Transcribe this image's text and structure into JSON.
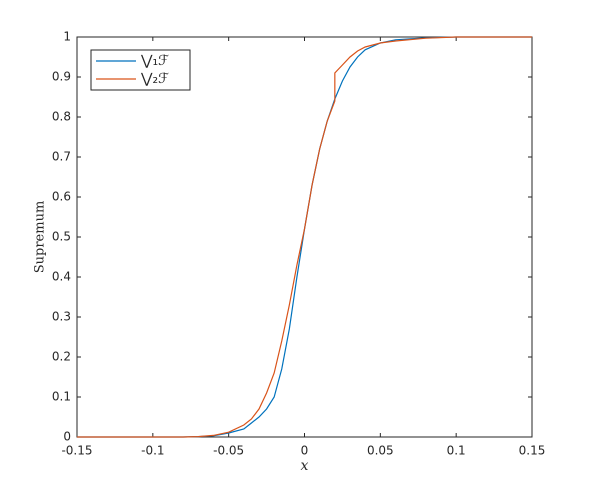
{
  "chart_data": {
    "type": "line",
    "x": [
      -0.15,
      -0.1,
      -0.08,
      -0.07,
      -0.06,
      -0.05,
      -0.04,
      -0.035,
      -0.03,
      -0.025,
      -0.02,
      -0.015,
      -0.01,
      -0.005,
      0,
      0.005,
      0.01,
      0.015,
      0.02,
      0.02,
      0.025,
      0.03,
      0.035,
      0.04,
      0.05,
      0.06,
      0.08,
      0.1,
      0.15
    ],
    "series": [
      {
        "name": "⋁₁ℱ",
        "color": "#0072bd",
        "values": [
          0,
          0,
          0,
          0.001,
          0.003,
          0.01,
          0.02,
          0.035,
          0.05,
          0.07,
          0.1,
          0.17,
          0.27,
          0.4,
          0.52,
          0.63,
          0.72,
          0.79,
          0.845,
          0.845,
          0.89,
          0.925,
          0.95,
          0.968,
          0.985,
          0.993,
          0.998,
          1,
          1
        ]
      },
      {
        "name": "⋁₂ℱ",
        "color": "#d95319",
        "values": [
          0,
          0,
          0,
          0.001,
          0.004,
          0.012,
          0.03,
          0.045,
          0.07,
          0.11,
          0.16,
          0.24,
          0.33,
          0.43,
          0.52,
          0.63,
          0.72,
          0.79,
          0.84,
          0.91,
          0.93,
          0.95,
          0.965,
          0.975,
          0.985,
          0.99,
          0.997,
          1,
          1
        ]
      }
    ],
    "x_label": "x",
    "y_label": "Supremum",
    "xlim": [
      -0.15,
      0.15
    ],
    "xticks": [
      -0.15,
      -0.1,
      -0.05,
      0,
      0.05,
      0.1,
      0.15
    ],
    "ylim": [
      0,
      1
    ],
    "yticks": [
      0,
      0.1,
      0.2,
      0.3,
      0.4,
      0.5,
      0.6,
      0.7,
      0.8,
      0.9,
      1
    ],
    "grid": false,
    "legend": "northwest"
  }
}
